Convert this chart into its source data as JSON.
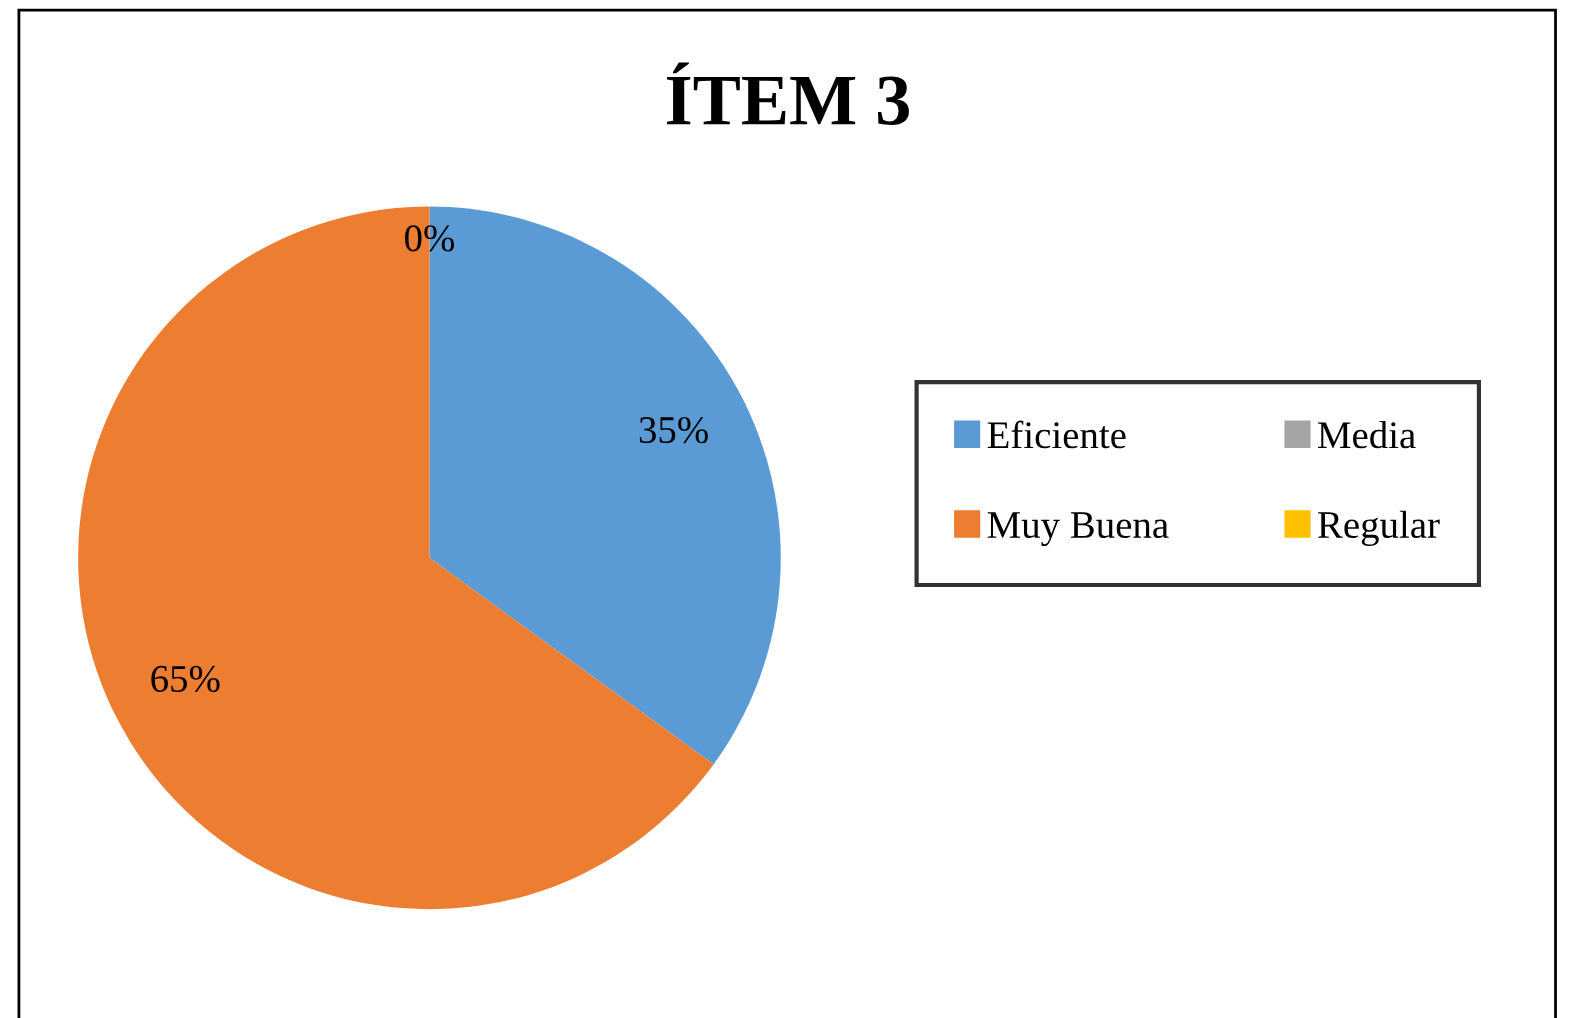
{
  "chart_data": {
    "type": "pie",
    "title": "ÍTEM 3",
    "categories": [
      "Eficiente",
      "Muy Buena",
      "Media",
      "Regular"
    ],
    "values": [
      35,
      65,
      0,
      0
    ],
    "colors": [
      "#5b9bd5",
      "#ed7d31",
      "#a5a5a5",
      "#ffc000"
    ],
    "value_labels": [
      "35%",
      "65%",
      "0%",
      null
    ],
    "legend": "right"
  }
}
